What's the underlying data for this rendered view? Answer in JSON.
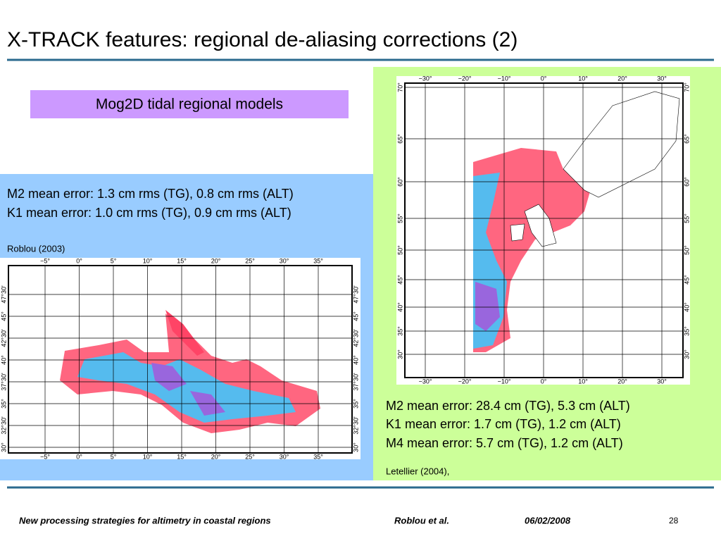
{
  "header": {
    "title": "X-TRACK features: regional de-aliasing corrections (2)"
  },
  "box": {
    "label": "Mog2D tidal regional models"
  },
  "left_panel": {
    "lines": [
      "M2 mean error: 1.3 cm rms (TG), 0.8 cm rms (ALT)",
      "K1 mean error: 1.0 cm rms (TG), 0.9 cm rms (ALT)"
    ],
    "citation": "Roblou (2003)"
  },
  "right_panel": {
    "lines": [
      "M2 mean error: 28.4 cm (TG), 5.3 cm (ALT)",
      "K1 mean error: 1.7 cm (TG), 1.2 cm (ALT)",
      "M4 mean error: 5.7 cm (TG), 1.2 cm (ALT)"
    ],
    "citation": "Letellier (2004),"
  },
  "med_map": {
    "lon_labels": [
      "−5°",
      "0°",
      "5°",
      "10°",
      "15°",
      "20°",
      "25°",
      "30°",
      "35°"
    ],
    "lat_labels": [
      "47°30'",
      "45°",
      "42°30'",
      "40°",
      "37°30'",
      "35°",
      "32°30'",
      "30°"
    ]
  },
  "atl_map": {
    "lon_labels": [
      "−30°",
      "−20°",
      "−10°",
      "0°",
      "10°",
      "20°",
      "30°"
    ],
    "lat_labels": [
      "70°",
      "65°",
      "60°",
      "55°",
      "50°",
      "45°",
      "40°",
      "35°",
      "30°"
    ]
  },
  "footer": {
    "text": "New processing strategies for altimetry in coastal regions",
    "authors": "Roblou et al.",
    "date": "06/02/2008",
    "page": "28"
  }
}
